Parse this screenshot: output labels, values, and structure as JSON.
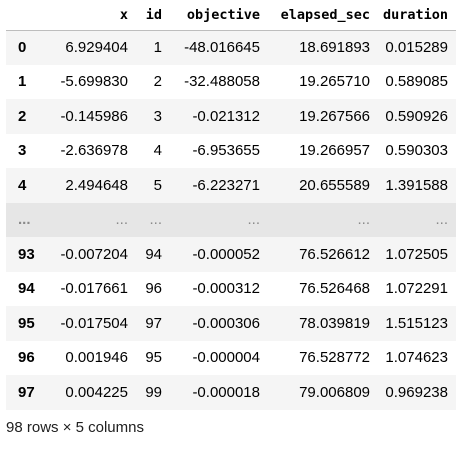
{
  "dataframe": {
    "columns": [
      "",
      "x",
      "id",
      "objective",
      "elapsed_sec",
      "duration"
    ],
    "rows": [
      {
        "index": "0",
        "cells": [
          "6.929404",
          "1",
          "-48.016645",
          "18.691893",
          "0.015289"
        ]
      },
      {
        "index": "1",
        "cells": [
          "-5.699830",
          "2",
          "-32.488058",
          "19.265710",
          "0.589085"
        ]
      },
      {
        "index": "2",
        "cells": [
          "-0.145986",
          "3",
          "-0.021312",
          "19.267566",
          "0.590926"
        ]
      },
      {
        "index": "3",
        "cells": [
          "-2.636978",
          "4",
          "-6.953655",
          "19.266957",
          "0.590303"
        ]
      },
      {
        "index": "4",
        "cells": [
          "2.494648",
          "5",
          "-6.223271",
          "20.655589",
          "1.391588"
        ]
      },
      {
        "index": "...",
        "cells": [
          "...",
          "...",
          "...",
          "...",
          "..."
        ],
        "ellipsis": true
      },
      {
        "index": "93",
        "cells": [
          "-0.007204",
          "94",
          "-0.000052",
          "76.526612",
          "1.072505"
        ]
      },
      {
        "index": "94",
        "cells": [
          "-0.017661",
          "96",
          "-0.000312",
          "76.526468",
          "1.072291"
        ]
      },
      {
        "index": "95",
        "cells": [
          "-0.017504",
          "97",
          "-0.000306",
          "78.039819",
          "1.515123"
        ]
      },
      {
        "index": "96",
        "cells": [
          "0.001946",
          "95",
          "-0.000004",
          "76.528772",
          "1.074623"
        ]
      },
      {
        "index": "97",
        "cells": [
          "0.004225",
          "99",
          "-0.000018",
          "79.006809",
          "0.969238"
        ]
      }
    ],
    "shape_text": "98 rows × 5 columns"
  }
}
